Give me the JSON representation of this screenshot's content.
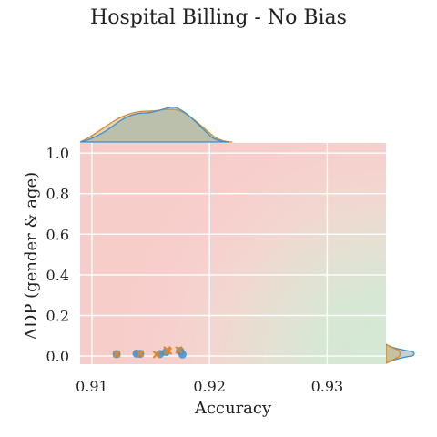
{
  "chart_data": {
    "type": "scatter",
    "title": "Hospital Billing - No Bias",
    "xlabel": "Accuracy",
    "ylabel": "ΔDP (gender & age)",
    "xlim": [
      0.909,
      0.935
    ],
    "ylim": [
      -0.04,
      1.05
    ],
    "xticks": [
      0.91,
      0.92,
      0.93
    ],
    "yticks": [
      0.0,
      0.2,
      0.4,
      0.6,
      0.8,
      1.0
    ],
    "xtick_labels": [
      "0.91",
      "0.92",
      "0.93"
    ],
    "ytick_labels": [
      "0.0",
      "0.2",
      "0.4",
      "0.6",
      "0.8",
      "1.0"
    ],
    "grid": true,
    "background": "red-to-green radial gradient (better toward high accuracy, low ΔDP)",
    "marginals": "kde on top (accuracy) and right (ΔDP)",
    "series": [
      {
        "marker": "circle",
        "color": "#3b8fd0",
        "x": [
          0.9121,
          0.9138,
          0.9141,
          0.9158,
          0.9163,
          0.9175,
          0.9177
        ],
        "y": [
          0.01,
          0.012,
          0.011,
          0.01,
          0.02,
          0.025,
          0.008
        ]
      },
      {
        "marker": "x",
        "color": "#d9892a",
        "x": [
          0.9121,
          0.9141,
          0.9155,
          0.9164,
          0.9165,
          0.9174
        ],
        "y": [
          0.01,
          0.012,
          0.008,
          0.03,
          0.025,
          0.03
        ]
      }
    ],
    "colors": {
      "blue": "#3b8fd0",
      "orange": "#d9892a",
      "kde_fill": "#b8b78d",
      "bg_red": "#f7cfcc",
      "bg_green": "#d4e8d3",
      "grid": "#ffffff"
    }
  }
}
